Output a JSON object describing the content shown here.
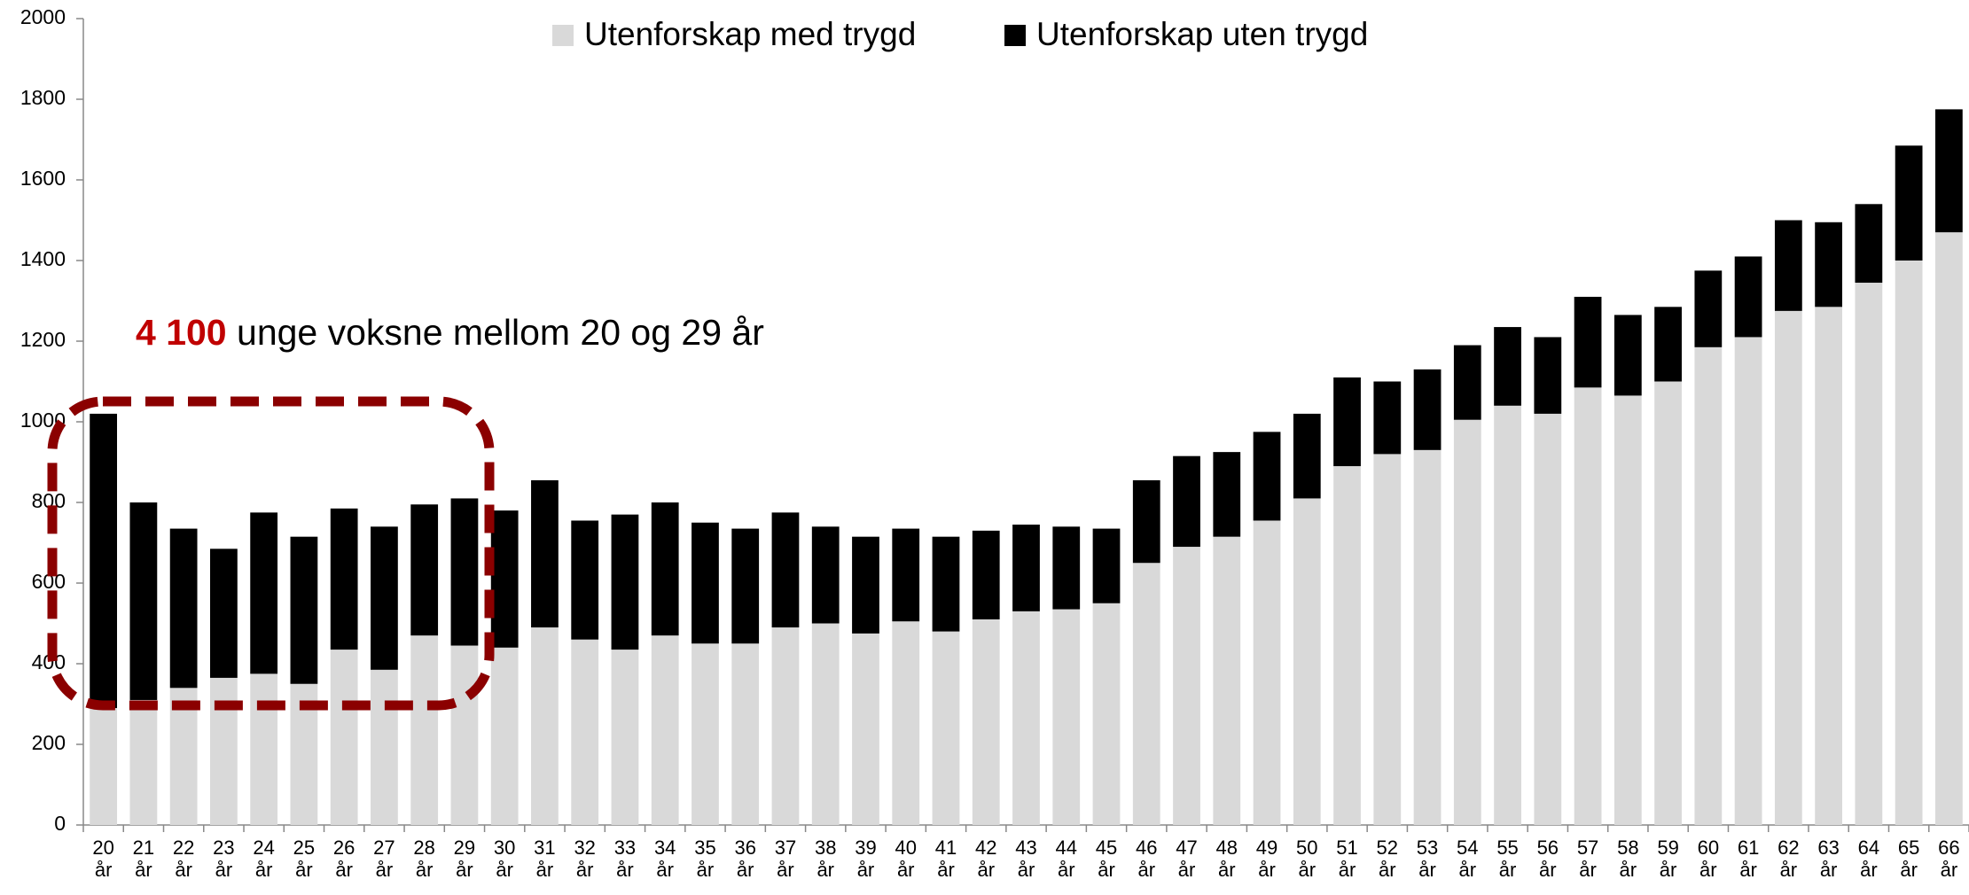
{
  "chart_data": {
    "type": "stacked_bar",
    "annotation": {
      "highlight": "4 100",
      "text": "unge voksne mellom 20 og 29 år"
    },
    "categories": [
      "20 år",
      "21 år",
      "22 år",
      "23 år",
      "24 år",
      "25 år",
      "26 år",
      "27 år",
      "28 år",
      "29 år",
      "30 år",
      "31 år",
      "32 år",
      "33 år",
      "34 år",
      "35 år",
      "36 år",
      "37 år",
      "38 år",
      "39 år",
      "40 år",
      "41 år",
      "42 år",
      "43 år",
      "44 år",
      "45 år",
      "46 år",
      "47 år",
      "48 år",
      "49 år",
      "50 år",
      "51 år",
      "52 år",
      "53 år",
      "54 år",
      "55 år",
      "56 år",
      "57 år",
      "58 år",
      "59 år",
      "60 år",
      "61 år",
      "62 år",
      "63 år",
      "64 år",
      "65 år",
      "66 år"
    ],
    "series": [
      {
        "name": "Utenforskap med trygd",
        "color": "#d9d9d9",
        "values": [
          290,
          310,
          340,
          365,
          375,
          350,
          435,
          385,
          470,
          445,
          440,
          490,
          460,
          435,
          470,
          450,
          450,
          490,
          500,
          475,
          505,
          480,
          510,
          530,
          535,
          550,
          650,
          690,
          715,
          755,
          810,
          890,
          920,
          930,
          1005,
          1040,
          1020,
          1085,
          1065,
          1100,
          1185,
          1210,
          1275,
          1285,
          1345,
          1400,
          1470
        ]
      },
      {
        "name": "Utenforskap uten trygd",
        "color": "#000000",
        "values": [
          730,
          490,
          395,
          320,
          400,
          365,
          350,
          355,
          325,
          365,
          340,
          365,
          295,
          335,
          330,
          300,
          285,
          285,
          240,
          240,
          230,
          235,
          220,
          215,
          205,
          185,
          205,
          225,
          210,
          220,
          210,
          220,
          180,
          200,
          185,
          195,
          190,
          225,
          200,
          185,
          190,
          200,
          225,
          210,
          195,
          285,
          305
        ]
      }
    ],
    "ylim": [
      0,
      2000
    ],
    "yticks": [
      0,
      200,
      400,
      600,
      800,
      1000,
      1200,
      1400,
      1600,
      1800,
      2000
    ],
    "legend": "top",
    "grid": false
  }
}
